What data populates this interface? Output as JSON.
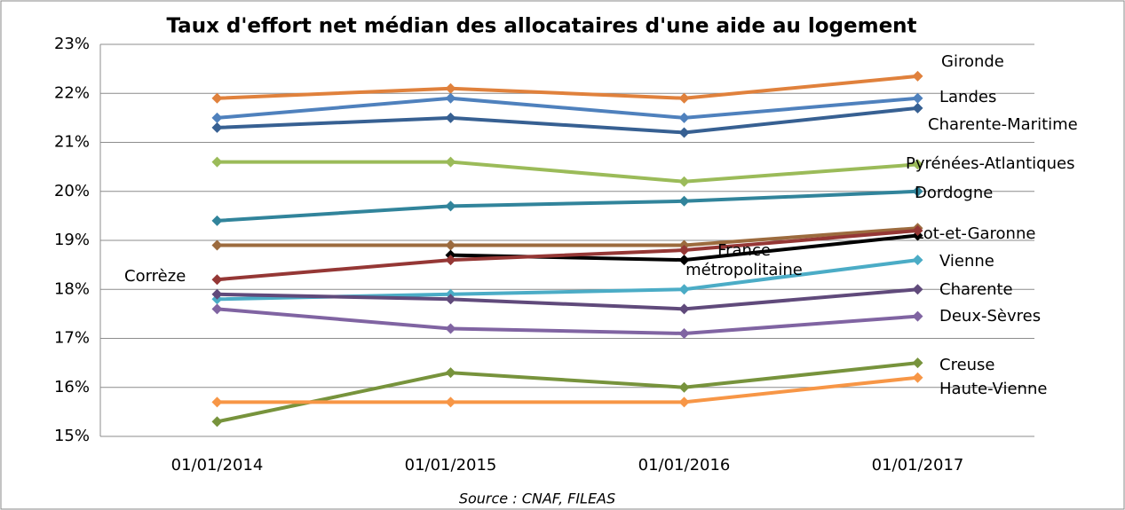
{
  "chart_data": {
    "type": "line",
    "title": "Taux d'effort net médian des allocataires d'une aide au logement",
    "source": "Source : CNAF, FILEAS",
    "categories": [
      "01/01/2014",
      "01/01/2015",
      "01/01/2016",
      "01/01/2017"
    ],
    "ylim": [
      15,
      23
    ],
    "yticks": [
      {
        "value": 15,
        "label": "15%"
      },
      {
        "value": 16,
        "label": "16%"
      },
      {
        "value": 17,
        "label": "17%"
      },
      {
        "value": 18,
        "label": "18%"
      },
      {
        "value": 19,
        "label": "19%"
      },
      {
        "value": 20,
        "label": "20%"
      },
      {
        "value": 21,
        "label": "21%"
      },
      {
        "value": 22,
        "label": "22%"
      },
      {
        "value": 23,
        "label": "23%"
      }
    ],
    "grid": true,
    "series": [
      {
        "name": "Gironde",
        "color": "#E0813C",
        "values": [
          21.9,
          22.1,
          21.9,
          22.35
        ]
      },
      {
        "name": "Landes",
        "color": "#4F81BD",
        "values": [
          21.5,
          21.9,
          21.5,
          21.9
        ]
      },
      {
        "name": "Charente-Maritime",
        "color": "#376092",
        "values": [
          21.3,
          21.5,
          21.2,
          21.7
        ]
      },
      {
        "name": "Pyrénées-Atlantiques",
        "color": "#9BBB59",
        "values": [
          20.6,
          20.6,
          20.2,
          20.55
        ]
      },
      {
        "name": "Dordogne",
        "color": "#31849B",
        "values": [
          19.4,
          19.7,
          19.8,
          20.0
        ]
      },
      {
        "name": "Lot-et-Garonne",
        "color": "#9C6B3E",
        "values": [
          18.9,
          18.9,
          18.9,
          19.25
        ]
      },
      {
        "name": "France métropolitaine",
        "color": "#000000",
        "values": [
          null,
          18.7,
          18.6,
          19.1
        ]
      },
      {
        "name": "Corrèze",
        "color": "#953735",
        "values": [
          18.2,
          18.6,
          18.8,
          19.2
        ]
      },
      {
        "name": "Vienne",
        "color": "#4BACC6",
        "values": [
          17.8,
          17.9,
          18.0,
          18.6
        ]
      },
      {
        "name": "Charente",
        "color": "#604A7B",
        "values": [
          17.9,
          17.8,
          17.6,
          18.0
        ]
      },
      {
        "name": "Deux-Sèvres",
        "color": "#8064A2",
        "values": [
          17.6,
          17.2,
          17.1,
          17.45
        ]
      },
      {
        "name": "Creuse",
        "color": "#77933C",
        "values": [
          15.3,
          16.3,
          16.0,
          16.5
        ]
      },
      {
        "name": "Haute-Vienne",
        "color": "#F79646",
        "values": [
          15.7,
          15.7,
          15.7,
          16.2
        ]
      }
    ]
  }
}
